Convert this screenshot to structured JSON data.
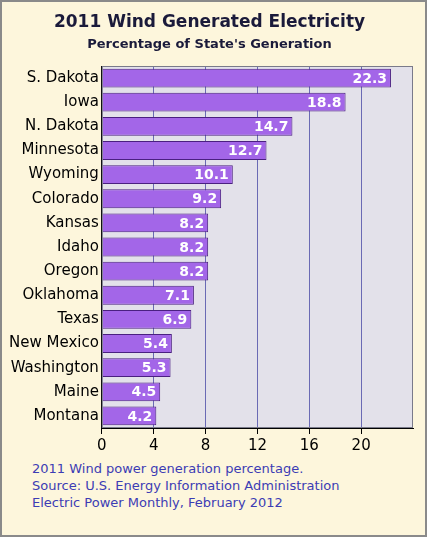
{
  "chart_data": {
    "type": "bar",
    "orientation": "horizontal",
    "title": "2011 Wind Generated Electricity",
    "subtitle": "Percentage of State's Generation",
    "categories": [
      "S. Dakota",
      "Iowa",
      "N. Dakota",
      "Minnesota",
      "Wyoming",
      "Colorado",
      "Kansas",
      "Idaho",
      "Oregon",
      "Oklahoma",
      "Texas",
      "New Mexico",
      "Washington",
      "Maine",
      "Montana"
    ],
    "values": [
      22.3,
      18.8,
      14.7,
      12.7,
      10.1,
      9.2,
      8.2,
      8.2,
      8.2,
      7.1,
      6.9,
      5.4,
      5.3,
      4.5,
      4.2
    ],
    "color": "#a366e8",
    "xlim": [
      0,
      24
    ],
    "xticks": [
      0,
      4,
      8,
      12,
      16,
      20
    ],
    "grid": true,
    "data_labels": true,
    "annotations": [
      "2011 Wind power generation percentage.",
      "Source: U.S. Energy Information Administration",
      "Electric Power Monthly, February 2012"
    ]
  }
}
